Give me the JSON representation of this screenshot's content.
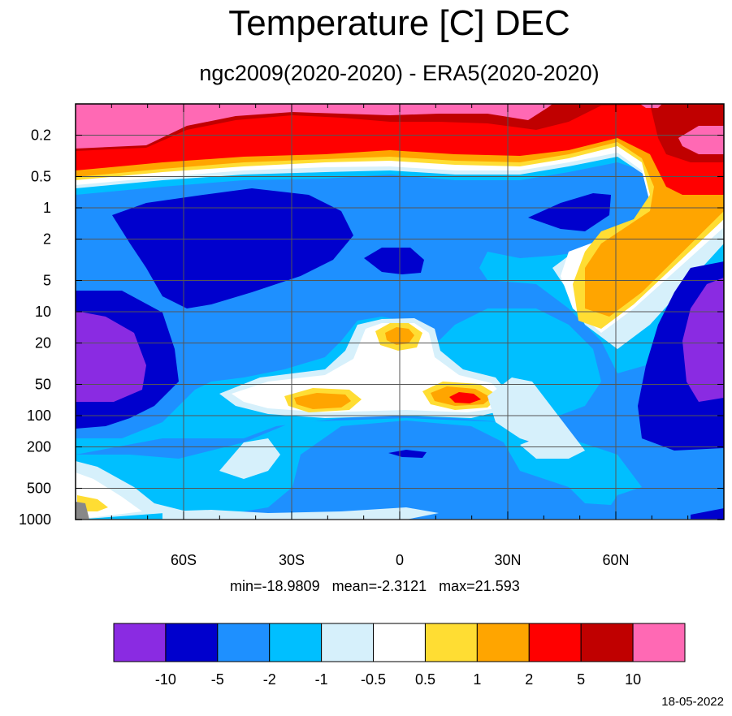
{
  "chart_data": {
    "type": "heatmap",
    "title": "Temperature [C] DEC",
    "subtitle": "ngc2009(2020-2020) - ERA5(2020-2020)",
    "x_ticks": [
      "60S",
      "30S",
      "0",
      "30N",
      "60N"
    ],
    "x_tick_values": [
      -60,
      -30,
      0,
      30,
      60
    ],
    "xlim": [
      -90,
      90
    ],
    "y_ticks": [
      "0.2",
      "0.5",
      "1",
      "2",
      "5",
      "10",
      "20",
      "50",
      "100",
      "200",
      "500",
      "1000"
    ],
    "y_tick_values": [
      0.2,
      0.5,
      1,
      2,
      5,
      10,
      20,
      50,
      100,
      200,
      500,
      1000
    ],
    "ylim": [
      1000,
      0.1
    ],
    "y_scale": "log",
    "grid": true,
    "stats": {
      "min": "-18.9809",
      "mean": "-2.3121",
      "max": "21.593"
    },
    "colorbar": {
      "levels": [
        "-10",
        "-5",
        "-2",
        "-1",
        "-0.5",
        "0.5",
        "1",
        "2",
        "5",
        "10"
      ],
      "colors": [
        "#8a2be2",
        "#0000cd",
        "#1e90ff",
        "#00bfff",
        "#d6f0fb",
        "#ffffff",
        "#ffdd33",
        "#ffa500",
        "#ff0000",
        "#c00000",
        "#ff69b4"
      ]
    }
  },
  "stats_text": "min=-18.9809   mean=-2.3121   max=21.593",
  "date": "18-05-2022",
  "colors": {
    "c_lt10": "#8a2be2",
    "c_m10_m5": "#0000cd",
    "c_m5_m2": "#1e90ff",
    "c_m2_m1": "#00bfff",
    "c_m1_m05": "#d6f0fb",
    "c_m05_05": "#ffffff",
    "c_05_1": "#ffdd33",
    "c_1_2": "#ffa500",
    "c_2_5": "#ff0000",
    "c_5_10": "#c00000",
    "c_gt10": "#ff69b4",
    "missing": "#888888"
  }
}
